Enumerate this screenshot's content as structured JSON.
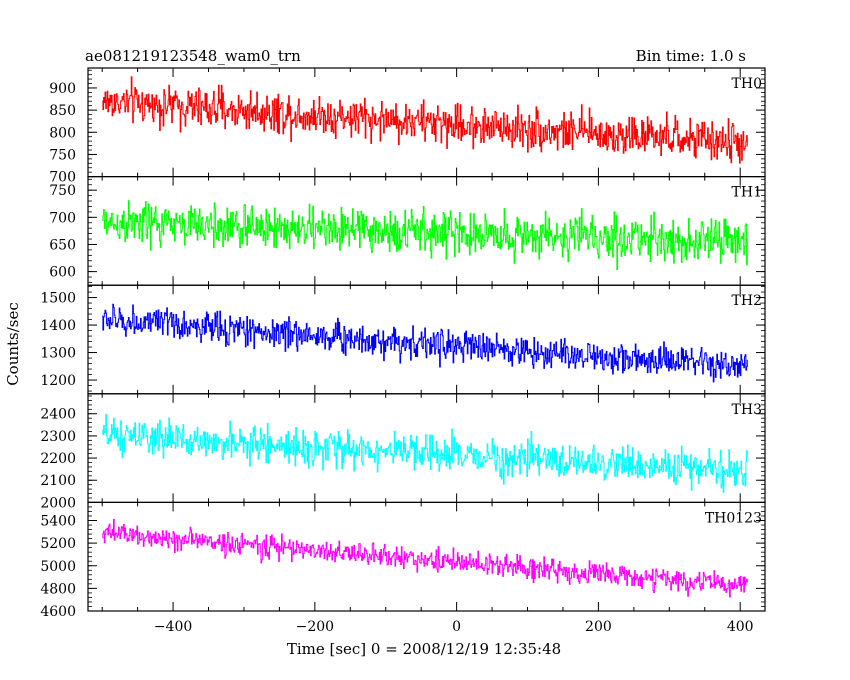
{
  "header": {
    "title_left": "ae081219123548_wam0_trn",
    "title_right": "Bin time: 1.0 s"
  },
  "chart_data": {
    "type": "line",
    "xlabel": "Time [sec] 0 = 2008/12/19 12:35:48",
    "ylabel": "Counts/sec",
    "xlim": [
      -520,
      435
    ],
    "x_start": -500,
    "x_end": 410,
    "x_step": 1.0,
    "x_ticks": [
      -400,
      -200,
      0,
      200,
      400
    ],
    "panels": [
      {
        "name": "TH0",
        "color": "#ff0000",
        "ylim": [
          700,
          945
        ],
        "ticks": [
          700,
          750,
          800,
          850,
          900
        ],
        "trend_start": 870,
        "trend_end": 775,
        "noise": 32
      },
      {
        "name": "TH1",
        "color": "#00ff00",
        "ylim": [
          575,
          775
        ],
        "ticks": [
          600,
          650,
          700,
          750
        ],
        "trend_start": 690,
        "trend_end": 655,
        "noise": 28
      },
      {
        "name": "TH2",
        "color": "#0000ff",
        "ylim": [
          1150,
          1545
        ],
        "ticks": [
          1200,
          1300,
          1400,
          1500
        ],
        "trend_start": 1420,
        "trend_end": 1245,
        "noise": 40
      },
      {
        "name": "TH3",
        "color": "#00ffff",
        "ylim": [
          2000,
          2490
        ],
        "ticks": [
          2000,
          2100,
          2200,
          2300,
          2400
        ],
        "trend_start": 2300,
        "trend_end": 2140,
        "noise": 55
      },
      {
        "name": "TH0123",
        "color": "#ff00ff",
        "ylim": [
          4600,
          5560
        ],
        "ticks": [
          4600,
          4800,
          5000,
          5200,
          5400
        ],
        "trend_start": 5290,
        "trend_end": 4820,
        "noise": 70
      }
    ]
  }
}
